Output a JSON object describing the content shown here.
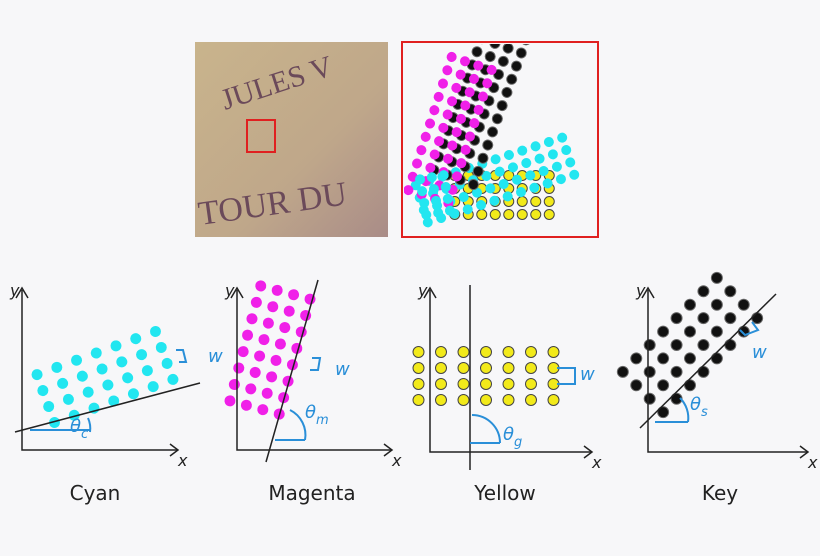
{
  "photo": {
    "texts": [
      "JULES V",
      "TOUR DU"
    ]
  },
  "panels": [
    {
      "label": "Cyan",
      "x_axis": "x",
      "y_axis": "y",
      "width_label": "w",
      "angle_symbol": "θ",
      "angle_subscript": "c"
    },
    {
      "label": "Magenta",
      "x_axis": "x",
      "y_axis": "y",
      "width_label": "w",
      "angle_symbol": "θ",
      "angle_subscript": "m"
    },
    {
      "label": "Yellow",
      "x_axis": "x",
      "y_axis": "y",
      "width_label": "w",
      "angle_symbol": "θ",
      "angle_subscript": "g"
    },
    {
      "label": "Key",
      "x_axis": "x",
      "y_axis": "y",
      "width_label": "w",
      "angle_symbol": "θ",
      "angle_subscript": "s"
    }
  ]
}
